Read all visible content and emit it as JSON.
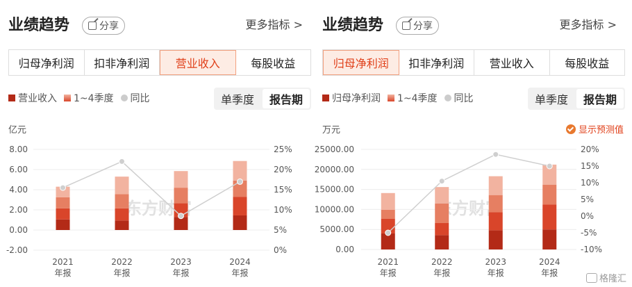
{
  "panels": [
    {
      "title": "业绩趋势",
      "share_label": "分享",
      "more_label": "更多指标 >",
      "tabs": [
        "归母净利润",
        "扣非净利润",
        "营业收入",
        "每股收益"
      ],
      "active_tab": 2,
      "legend": [
        "营业收入",
        "1~4季度",
        "同比"
      ],
      "toggle": [
        "单季度",
        "报告期"
      ],
      "unit": "亿元",
      "watermark": "东方财富"
    },
    {
      "title": "业绩趋势",
      "share_label": "分享",
      "more_label": "更多指标 >",
      "tabs": [
        "归母净利润",
        "扣非净利润",
        "营业收入",
        "每股收益"
      ],
      "active_tab": 0,
      "legend": [
        "归母净利润",
        "1~4季度",
        "同比"
      ],
      "toggle": [
        "单季度",
        "报告期"
      ],
      "unit": "万元",
      "forecast_label": "显示预测值",
      "watermark": "东方财富"
    }
  ],
  "brand": "格隆汇",
  "colors": {
    "accent": "#e0401a",
    "q1": "#b32a17",
    "q2": "#d9452a",
    "q3": "#e67f62",
    "q4": "#f2b3a0",
    "line": "#cfcfcf"
  },
  "chart_data": [
    {
      "type": "bar",
      "stacked": true,
      "categories": [
        "2021\n年报",
        "2022\n年报",
        "2023\n年报",
        "2024\n年报"
      ],
      "series": [
        {
          "name": "1~4季度",
          "quarters": [
            [
              1.05,
              1.1,
              1.1,
              1.05
            ],
            [
              0.95,
              1.2,
              1.4,
              1.75
            ],
            [
              1.3,
              1.35,
              1.55,
              1.65
            ],
            [
              1.45,
              1.85,
              1.6,
              1.95
            ]
          ]
        }
      ],
      "yoy": [
        0.155,
        0.22,
        0.085,
        0.17
      ],
      "y_ticks": [
        "8.00",
        "6.00",
        "4.00",
        "2.00",
        "0.00",
        "-2.00"
      ],
      "y2_ticks": [
        "25%",
        "20%",
        "15%",
        "10%",
        "5%",
        "0%"
      ],
      "ylim": [
        -2,
        8
      ],
      "y2lim": [
        0,
        0.25
      ]
    },
    {
      "type": "bar",
      "stacked": true,
      "categories": [
        "2021\n年报",
        "2022\n年报",
        "2023\n年报",
        "2024\n年报"
      ],
      "series": [
        {
          "name": "1~4季度",
          "quarters": [
            [
              4000,
              3700,
              2200,
              4200
            ],
            [
              3600,
              3000,
              4900,
              4100
            ],
            [
              4800,
              4500,
              4300,
              4700
            ],
            [
              5000,
              6200,
              5000,
              5000
            ]
          ]
        }
      ],
      "yoy": [
        -0.05,
        0.105,
        0.185,
        0.15
      ],
      "y_ticks": [
        "25000.00",
        "20000.00",
        "15000.00",
        "10000.00",
        "5000.00",
        "0.00"
      ],
      "y2_ticks": [
        "20%",
        "15%",
        "10%",
        "5%",
        "0%",
        "-5%",
        "-10%"
      ],
      "ylim": [
        0,
        25000
      ],
      "y2lim": [
        -0.1,
        0.2
      ]
    }
  ]
}
